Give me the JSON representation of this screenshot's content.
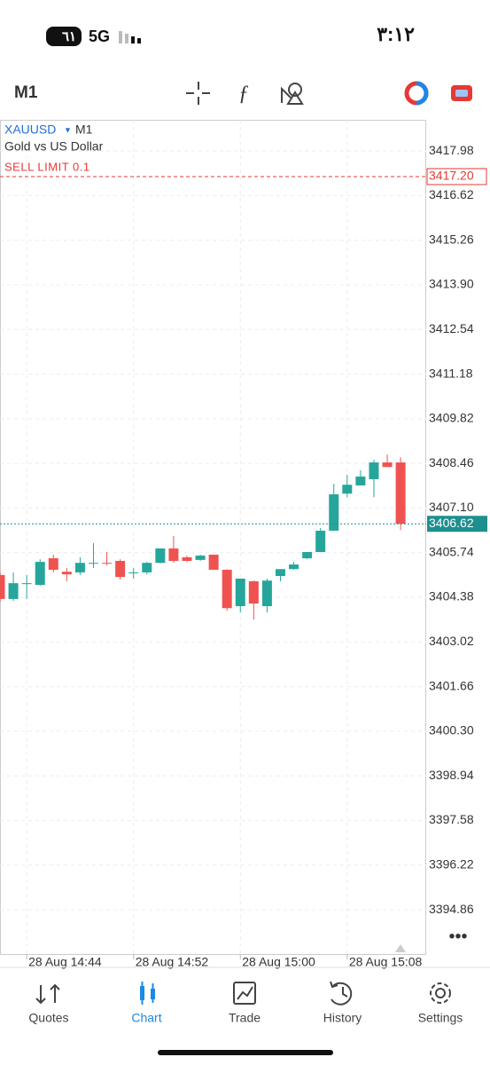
{
  "status_bar": {
    "time": "٣:١٢",
    "network": "5G",
    "battery": "٦١"
  },
  "toolbar": {
    "timeframe": "M1"
  },
  "tabs": [
    "Quotes",
    "Chart",
    "Trade",
    "History",
    "Settings"
  ],
  "chart_data": {
    "type": "candlestick",
    "symbol": "XAUUSD",
    "timeframe": "M1",
    "description": "Gold vs US Dollar",
    "up_color": "#26a69a",
    "down_color": "#ef5350",
    "x": [
      "28 Aug 14:42",
      "28 Aug 14:43",
      "28 Aug 14:44",
      "28 Aug 14:45",
      "28 Aug 14:46",
      "28 Aug 14:47",
      "28 Aug 14:48",
      "28 Aug 14:49",
      "28 Aug 14:50",
      "28 Aug 14:51",
      "28 Aug 14:52",
      "28 Aug 14:53",
      "28 Aug 14:54",
      "28 Aug 14:55",
      "28 Aug 14:56",
      "28 Aug 14:57",
      "28 Aug 14:58",
      "28 Aug 14:59",
      "28 Aug 15:00",
      "28 Aug 15:01",
      "28 Aug 15:02",
      "28 Aug 15:03",
      "28 Aug 15:04",
      "28 Aug 15:05",
      "28 Aug 15:06",
      "28 Aug 15:07",
      "28 Aug 15:08",
      "28 Aug 15:09",
      "28 Aug 15:10",
      "28 Aug 15:11",
      "28 Aug 15:12"
    ],
    "open": [
      3405.06,
      3404.33,
      3404.81,
      3404.76,
      3405.57,
      3405.16,
      3405.14,
      3405.41,
      3405.43,
      3405.49,
      3405.14,
      3405.14,
      3405.43,
      3405.87,
      3405.6,
      3405.52,
      3405.68,
      3405.22,
      3404.11,
      3404.87,
      3404.11,
      3405.03,
      3405.24,
      3405.57,
      3405.76,
      3406.41,
      3407.54,
      3407.79,
      3407.98,
      3408.49,
      3408.49
    ],
    "high": [
      3405.14,
      3405.14,
      3405.06,
      3405.54,
      3405.68,
      3405.27,
      3405.6,
      3406.03,
      3405.76,
      3405.54,
      3405.27,
      3405.46,
      3405.87,
      3406.25,
      3405.65,
      3405.68,
      3405.68,
      3405.24,
      3404.95,
      3404.89,
      3404.95,
      3405.24,
      3405.46,
      3405.76,
      3406.49,
      3407.84,
      3408.11,
      3408.25,
      3408.57,
      3408.73,
      3408.65
    ],
    "low": [
      3404.24,
      3404.27,
      3404.33,
      3404.73,
      3405.14,
      3404.87,
      3405.06,
      3405.27,
      3405.35,
      3404.92,
      3404.95,
      3405.08,
      3405.41,
      3405.43,
      3405.46,
      3405.49,
      3405.22,
      3403.97,
      3403.92,
      3403.7,
      3403.92,
      3404.87,
      3405.22,
      3405.54,
      3405.76,
      3406.41,
      3407.43,
      3407.79,
      3407.43,
      3408.35,
      3406.43
    ],
    "close": [
      3404.33,
      3404.81,
      3404.81,
      3405.46,
      3405.22,
      3405.08,
      3405.43,
      3405.43,
      3405.41,
      3405.0,
      3405.14,
      3405.43,
      3405.87,
      3405.49,
      3405.49,
      3405.65,
      3405.22,
      3404.05,
      3404.95,
      3404.19,
      3404.89,
      3405.24,
      3405.38,
      3405.76,
      3406.41,
      3407.52,
      3407.81,
      3408.06,
      3408.49,
      3408.35,
      3406.62
    ],
    "ylim": [
      3393.51,
      3418.93
    ],
    "yticks": [
      3417.98,
      3416.62,
      3415.26,
      {
        "value": 3413.9,
        "label": "3413.90"
      },
      3412.54,
      3411.18,
      3409.82,
      3408.46,
      {
        "value": 3407.1,
        "label": "3407.10"
      },
      3405.74,
      3404.38,
      3403.02,
      3401.66,
      {
        "value": 3400.3,
        "label": "3400.30"
      },
      3398.94,
      3397.58,
      3396.22,
      3394.86
    ],
    "xticks": [
      "28 Aug 14:44",
      "28 Aug 14:52",
      "28 Aug 15:00",
      "28 Aug 15:08"
    ],
    "order_line": {
      "label": "SELL LIMIT 0.1",
      "price": {
        "value": 3417.2,
        "label": "3417.20"
      },
      "color": "#e53935"
    },
    "price_line": {
      "price": 3406.62,
      "color": "#1e8f8f"
    },
    "grid": true
  }
}
